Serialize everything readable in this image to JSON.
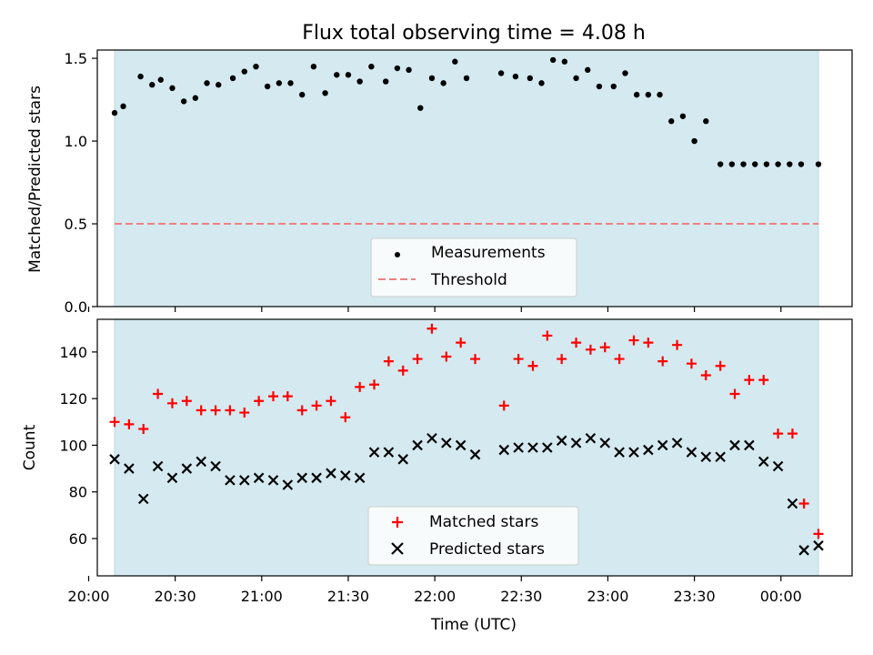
{
  "chart_data": [
    {
      "type": "scatter",
      "title": "Flux total observing time = 4.08 h",
      "ylabel": "Matched/Predicted stars",
      "ylim": [
        0,
        1.55
      ],
      "yticks": [
        "0.0",
        "0.5",
        "1.0",
        "1.5"
      ],
      "x_time_range": [
        "20:03",
        "00:13"
      ],
      "shaded_interval": [
        "20:09",
        "00:13"
      ],
      "shade_color": "#d4eaf0",
      "threshold": 0.5,
      "threshold_color": "#f08080",
      "legend_position": "lower center",
      "legend": [
        {
          "label": "Measurements",
          "marker": "dot"
        },
        {
          "label": "Threshold",
          "marker": "dashed-line"
        }
      ],
      "series": [
        {
          "name": "Measurements",
          "color": "#000000",
          "x": [
            "20:09",
            "20:12",
            "20:18",
            "20:22",
            "20:25",
            "20:29",
            "20:33",
            "20:37",
            "20:41",
            "20:45",
            "20:50",
            "20:54",
            "20:58",
            "21:02",
            "21:06",
            "21:10",
            "21:14",
            "21:18",
            "21:22",
            "21:26",
            "21:30",
            "21:34",
            "21:38",
            "21:43",
            "21:47",
            "21:51",
            "21:55",
            "21:59",
            "22:03",
            "22:07",
            "22:11",
            "22:23",
            "22:28",
            "22:33",
            "22:37",
            "22:41",
            "22:45",
            "22:49",
            "22:53",
            "22:57",
            "23:02",
            "23:06",
            "23:10",
            "23:14",
            "23:18",
            "23:22",
            "23:26",
            "23:30",
            "23:34",
            "23:39",
            "23:43",
            "23:47",
            "23:51",
            "23:55",
            "23:59",
            "00:03",
            "00:07",
            "00:13"
          ],
          "y": [
            1.17,
            1.21,
            1.39,
            1.34,
            1.37,
            1.32,
            1.24,
            1.26,
            1.35,
            1.34,
            1.38,
            1.42,
            1.45,
            1.33,
            1.35,
            1.35,
            1.28,
            1.45,
            1.29,
            1.4,
            1.4,
            1.36,
            1.45,
            1.36,
            1.44,
            1.43,
            1.2,
            1.38,
            1.35,
            1.48,
            1.38,
            1.41,
            1.39,
            1.38,
            1.35,
            1.49,
            1.48,
            1.38,
            1.43,
            1.33,
            1.33,
            1.41,
            1.28,
            1.28,
            1.28,
            1.12,
            1.15,
            1.0,
            1.12,
            0.86,
            0.86,
            0.86,
            0.86,
            0.86,
            0.86,
            0.86,
            0.86,
            0.86
          ]
        }
      ]
    },
    {
      "type": "scatter",
      "xlabel": "Time (UTC)",
      "ylabel": "Count",
      "ylim": [
        44,
        154
      ],
      "yticks": [
        "60",
        "80",
        "100",
        "120",
        "140"
      ],
      "xticks": [
        "20:00",
        "20:30",
        "21:00",
        "21:30",
        "22:00",
        "22:30",
        "23:00",
        "23:30",
        "00:00"
      ],
      "x_time_range": [
        "20:03",
        "00:13"
      ],
      "legend_position": "lower center",
      "legend": [
        {
          "label": "Matched stars",
          "marker": "plus",
          "color": "#ff0000"
        },
        {
          "label": "Predicted stars",
          "marker": "x",
          "color": "#000000"
        }
      ],
      "series": [
        {
          "name": "Matched stars",
          "color": "#ff0000",
          "x": [
            "20:09",
            "20:14",
            "20:19",
            "20:24",
            "20:29",
            "20:34",
            "20:39",
            "20:44",
            "20:49",
            "20:54",
            "20:59",
            "21:04",
            "21:09",
            "21:14",
            "21:19",
            "21:24",
            "21:29",
            "21:34",
            "21:39",
            "21:44",
            "21:49",
            "21:54",
            "21:59",
            "22:04",
            "22:09",
            "22:14",
            "22:24",
            "22:29",
            "22:34",
            "22:39",
            "22:44",
            "22:49",
            "22:54",
            "22:59",
            "23:04",
            "23:09",
            "23:14",
            "23:19",
            "23:24",
            "23:29",
            "23:34",
            "23:39",
            "23:44",
            "23:49",
            "23:54",
            "23:59",
            "00:04",
            "00:08",
            "00:13"
          ],
          "y": [
            110,
            109,
            107,
            122,
            118,
            119,
            115,
            115,
            115,
            114,
            119,
            121,
            121,
            115,
            117,
            119,
            112,
            125,
            126,
            136,
            132,
            137,
            150,
            138,
            144,
            137,
            117,
            137,
            134,
            147,
            137,
            144,
            141,
            142,
            137,
            145,
            144,
            136,
            143,
            135,
            130,
            134,
            122,
            128,
            128,
            105,
            105,
            75,
            62
          ]
        },
        {
          "name": "Predicted stars",
          "color": "#000000",
          "x": [
            "20:09",
            "20:14",
            "20:19",
            "20:24",
            "20:29",
            "20:34",
            "20:39",
            "20:44",
            "20:49",
            "20:54",
            "20:59",
            "21:04",
            "21:09",
            "21:14",
            "21:19",
            "21:24",
            "21:29",
            "21:34",
            "21:39",
            "21:44",
            "21:49",
            "21:54",
            "21:59",
            "22:04",
            "22:09",
            "22:14",
            "22:24",
            "22:29",
            "22:34",
            "22:39",
            "22:44",
            "22:49",
            "22:54",
            "22:59",
            "23:04",
            "23:09",
            "23:14",
            "23:19",
            "23:24",
            "23:29",
            "23:34",
            "23:39",
            "23:44",
            "23:49",
            "23:54",
            "23:59",
            "00:04",
            "00:08",
            "00:13"
          ],
          "y": [
            94,
            90,
            77,
            91,
            86,
            90,
            93,
            91,
            85,
            85,
            86,
            85,
            83,
            86,
            86,
            88,
            87,
            86,
            97,
            97,
            94,
            100,
            103,
            101,
            100,
            96,
            98,
            99,
            99,
            99,
            102,
            101,
            103,
            101,
            97,
            97,
            98,
            100,
            101,
            97,
            95,
            95,
            100,
            100,
            93,
            91,
            75,
            55,
            57
          ]
        }
      ]
    }
  ]
}
